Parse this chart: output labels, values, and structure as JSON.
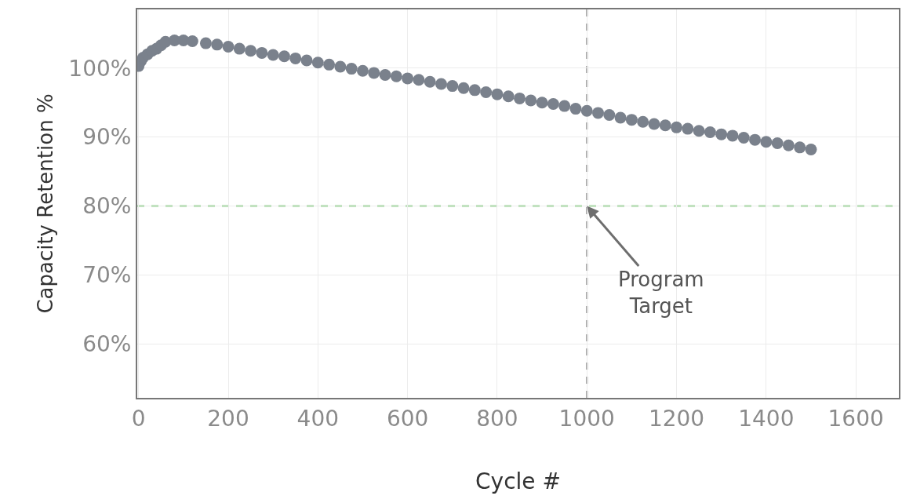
{
  "chart_data": {
    "type": "scatter",
    "xlabel": "Cycle #",
    "ylabel": "Capacity Retention %",
    "x": [
      0,
      5,
      10,
      20,
      30,
      40,
      50,
      60,
      80,
      100,
      120,
      150,
      175,
      200,
      225,
      250,
      275,
      300,
      325,
      350,
      375,
      400,
      425,
      450,
      475,
      500,
      525,
      550,
      575,
      600,
      625,
      650,
      675,
      700,
      725,
      750,
      775,
      800,
      825,
      850,
      875,
      900,
      925,
      950,
      975,
      1000,
      1025,
      1050,
      1075,
      1100,
      1125,
      1150,
      1175,
      1200,
      1225,
      1250,
      1275,
      1300,
      1325,
      1350,
      1375,
      1400,
      1425,
      1450,
      1475,
      1500
    ],
    "series": [
      {
        "color": "#7a818c",
        "values": [
          100.3,
          101,
          101.5,
          102,
          102.5,
          102.8,
          103.3,
          103.8,
          104,
          104,
          103.9,
          103.6,
          103.4,
          103.1,
          102.8,
          102.5,
          102.2,
          101.9,
          101.7,
          101.4,
          101.1,
          100.8,
          100.5,
          100.2,
          99.9,
          99.6,
          99.3,
          99.0,
          98.8,
          98.5,
          98.3,
          98.0,
          97.7,
          97.4,
          97.1,
          96.8,
          96.5,
          96.2,
          95.9,
          95.6,
          95.3,
          95.0,
          94.8,
          94.5,
          94.1,
          93.8,
          93.5,
          93.2,
          92.8,
          92.5,
          92.2,
          91.9,
          91.7,
          91.4,
          91.2,
          90.9,
          90.7,
          90.4,
          90.2,
          89.9,
          89.6,
          89.3,
          89.1,
          88.8,
          88.5,
          88.2
        ]
      }
    ],
    "marker": "circle",
    "xlim": [
      -3,
      1696
    ],
    "xticks": [
      0,
      200,
      400,
      600,
      800,
      1000,
      1200,
      1400,
      1600
    ],
    "ylim": [
      52.2,
      108.5
    ],
    "yticks": [
      {
        "value": 60,
        "label": "60%"
      },
      {
        "value": 70,
        "label": "70%"
      },
      {
        "value": 80,
        "label": "80%"
      },
      {
        "value": 90,
        "label": "90%"
      },
      {
        "value": 100,
        "label": "100%"
      }
    ],
    "grid": true,
    "ref_lines": [
      {
        "axis": "x",
        "value": 1000,
        "color": "#a0a0a0",
        "line_style": "dashed"
      },
      {
        "axis": "y",
        "value": 80,
        "color": "#8fd18a",
        "line_style": "dashed"
      }
    ],
    "annotations": [
      {
        "text": "Program\nTarget",
        "x": 1000,
        "y": 80
      }
    ]
  }
}
